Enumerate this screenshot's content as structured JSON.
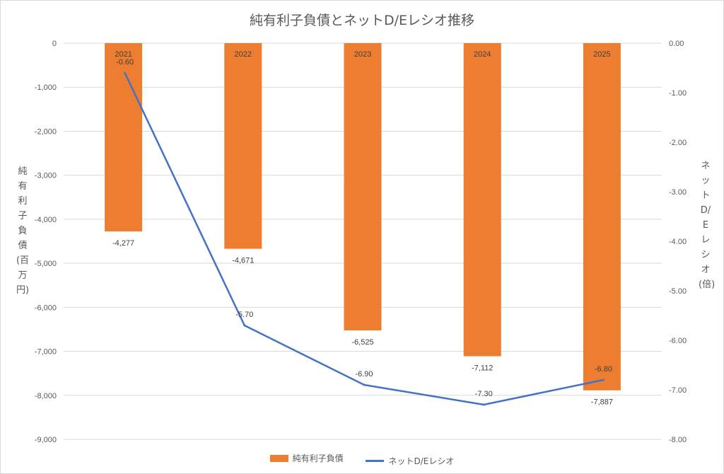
{
  "chart_data": {
    "type": "bar",
    "title": "純有利子負債とネットD/Eレシオ推移",
    "categories": [
      "2021",
      "2022",
      "2023",
      "2024",
      "2025"
    ],
    "series": [
      {
        "name": "純有利子負債",
        "type": "bar",
        "axis": "left",
        "color": "#ED7D31",
        "values": [
          -4277,
          -4671,
          -6525,
          -7112,
          -7887
        ],
        "labels": [
          "-4,277",
          "-4,671",
          "-6,525",
          "-7,112",
          "-7,887"
        ]
      },
      {
        "name": "ネットD/Eレシオ",
        "type": "line",
        "axis": "right",
        "color": "#4472C4",
        "values": [
          -0.6,
          -5.7,
          -6.9,
          -7.3,
          -6.8
        ],
        "labels": [
          "-0.60",
          "-5.70",
          "-6.90",
          "-7.30",
          "-6.80"
        ]
      }
    ],
    "ylabel_left": "純有利子負債(百万円)",
    "ylabel_right": "ネットD/Eレシオ(倍)",
    "ylim_left": [
      -9000,
      0
    ],
    "ylim_right": [
      -8,
      0
    ],
    "yticks_left": [
      "0",
      "-1,000",
      "-2,000",
      "-3,000",
      "-4,000",
      "-5,000",
      "-6,000",
      "-7,000",
      "-8,000",
      "-9,000"
    ],
    "yticks_right": [
      "0.00",
      "-1.00",
      "-2.00",
      "-3.00",
      "-4.00",
      "-5.00",
      "-6.00",
      "-7.00",
      "-8.00"
    ],
    "grid": true,
    "legend_position": "bottom"
  }
}
